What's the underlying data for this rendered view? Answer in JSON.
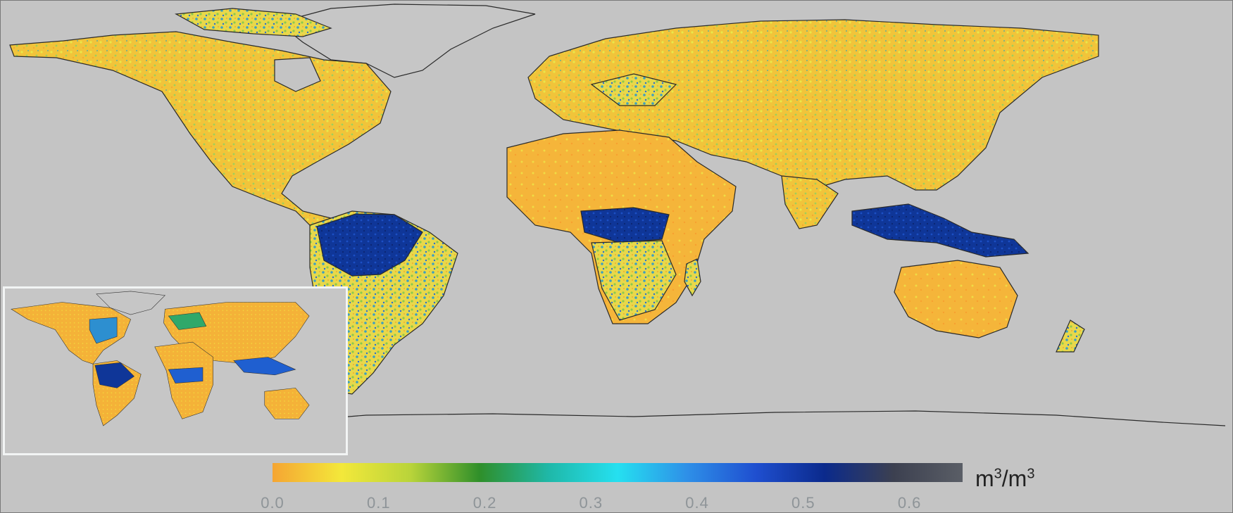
{
  "colorbar": {
    "unit_base": "m",
    "unit_exp": "3",
    "unit_sep": "/m",
    "unit_exp2": "3",
    "ticks": [
      "0.0",
      "0.1",
      "0.2",
      "0.3",
      "0.4",
      "0.5",
      "0.6"
    ],
    "range": [
      0,
      0.65
    ],
    "stops": [
      "#f5a533",
      "#f3e83a",
      "#b9d43a",
      "#2f8f2a",
      "#1fb8a8",
      "#25e0f0",
      "#2e90e8",
      "#1f4fd0",
      "#0b2a8c",
      "#3c4050",
      "#5a5e66"
    ]
  },
  "colors": {
    "ocean": "#c4c4c4",
    "coast": "#2a2a2a",
    "dry": "#f3b93a",
    "moderate": "#e6e24a",
    "wet": "#2e7fd6",
    "very_wet": "#0d2f95"
  },
  "regions": [
    {
      "name": "north-america",
      "moisture": 0.12
    },
    {
      "name": "south-america",
      "moisture": 0.3
    },
    {
      "name": "amazon",
      "moisture": 0.55
    },
    {
      "name": "europe",
      "moisture": 0.15
    },
    {
      "name": "africa-north",
      "moisture": 0.02
    },
    {
      "name": "congo",
      "moisture": 0.55
    },
    {
      "name": "africa-south",
      "moisture": 0.12
    },
    {
      "name": "asia",
      "moisture": 0.1
    },
    {
      "name": "southeast-asia",
      "moisture": 0.45
    },
    {
      "name": "australia",
      "moisture": 0.05
    },
    {
      "name": "greenland",
      "moisture": null
    },
    {
      "name": "antarctica",
      "moisture": null
    }
  ]
}
